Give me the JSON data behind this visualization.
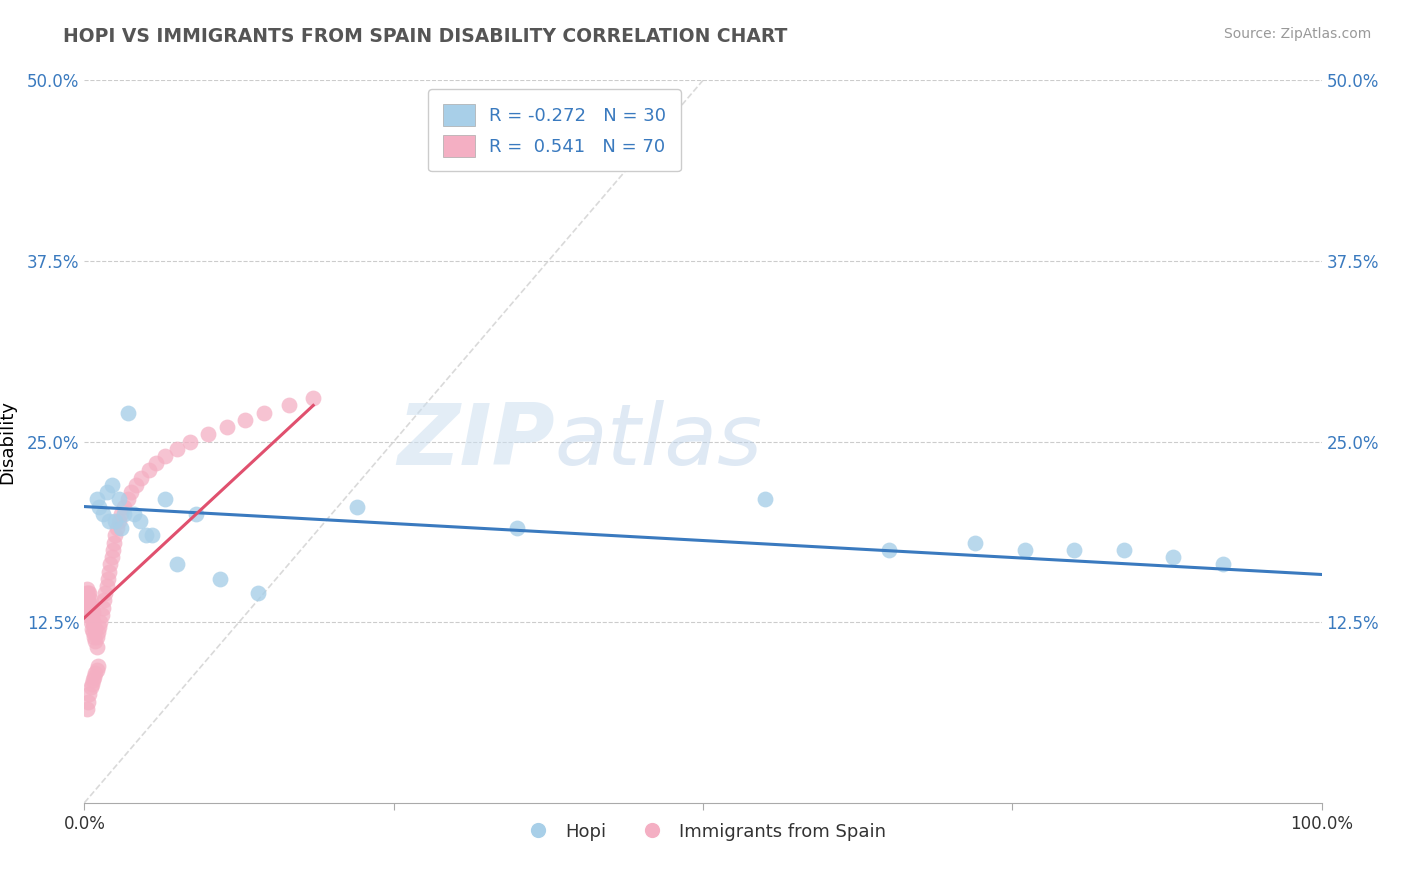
{
  "title": "HOPI VS IMMIGRANTS FROM SPAIN DISABILITY CORRELATION CHART",
  "source": "Source: ZipAtlas.com",
  "ylabel": "Disability",
  "xlim": [
    0,
    1.0
  ],
  "ylim": [
    0,
    0.5
  ],
  "yticks": [
    0.0,
    0.125,
    0.25,
    0.375,
    0.5
  ],
  "ytick_labels": [
    "",
    "12.5%",
    "25.0%",
    "37.5%",
    "50.0%"
  ],
  "xticks": [
    0.0,
    0.25,
    0.5,
    0.75,
    1.0
  ],
  "xtick_labels": [
    "0.0%",
    "",
    "",
    "",
    "100.0%"
  ],
  "watermark_zip": "ZIP",
  "watermark_atlas": "atlas",
  "legend_r1": "R = -0.272",
  "legend_n1": "N = 30",
  "legend_r2": "R =  0.541",
  "legend_n2": "N = 70",
  "blue_color": "#a8cfe8",
  "pink_color": "#f4afc3",
  "blue_line_color": "#3a7abf",
  "pink_line_color": "#e0506e",
  "diagonal_color": "#d0d0d0",
  "hopi_x": [
    0.01,
    0.012,
    0.015,
    0.018,
    0.02,
    0.022,
    0.025,
    0.028,
    0.03,
    0.032,
    0.035,
    0.04,
    0.045,
    0.05,
    0.055,
    0.065,
    0.075,
    0.09,
    0.11,
    0.14,
    0.22,
    0.35,
    0.55,
    0.65,
    0.72,
    0.76,
    0.8,
    0.84,
    0.88,
    0.92
  ],
  "hopi_y": [
    0.21,
    0.205,
    0.2,
    0.215,
    0.195,
    0.22,
    0.195,
    0.21,
    0.19,
    0.2,
    0.27,
    0.2,
    0.195,
    0.185,
    0.185,
    0.21,
    0.165,
    0.2,
    0.155,
    0.145,
    0.205,
    0.19,
    0.21,
    0.175,
    0.18,
    0.175,
    0.175,
    0.175,
    0.17,
    0.165
  ],
  "spain_x": [
    0.001,
    0.001,
    0.002,
    0.002,
    0.002,
    0.003,
    0.003,
    0.003,
    0.004,
    0.004,
    0.004,
    0.005,
    0.005,
    0.005,
    0.006,
    0.006,
    0.006,
    0.007,
    0.007,
    0.007,
    0.008,
    0.008,
    0.009,
    0.009,
    0.01,
    0.01,
    0.011,
    0.012,
    0.013,
    0.014,
    0.015,
    0.016,
    0.017,
    0.018,
    0.019,
    0.02,
    0.021,
    0.022,
    0.023,
    0.024,
    0.025,
    0.026,
    0.028,
    0.03,
    0.032,
    0.035,
    0.038,
    0.042,
    0.046,
    0.052,
    0.058,
    0.065,
    0.075,
    0.085,
    0.1,
    0.115,
    0.13,
    0.145,
    0.165,
    0.185,
    0.002,
    0.003,
    0.004,
    0.005,
    0.006,
    0.007,
    0.008,
    0.009,
    0.01,
    0.011
  ],
  "spain_y": [
    0.14,
    0.145,
    0.138,
    0.142,
    0.148,
    0.135,
    0.14,
    0.145,
    0.13,
    0.138,
    0.145,
    0.125,
    0.132,
    0.14,
    0.12,
    0.128,
    0.135,
    0.118,
    0.125,
    0.132,
    0.115,
    0.122,
    0.112,
    0.12,
    0.108,
    0.115,
    0.118,
    0.122,
    0.125,
    0.13,
    0.135,
    0.14,
    0.145,
    0.15,
    0.155,
    0.16,
    0.165,
    0.17,
    0.175,
    0.18,
    0.185,
    0.19,
    0.195,
    0.2,
    0.205,
    0.21,
    0.215,
    0.22,
    0.225,
    0.23,
    0.235,
    0.24,
    0.245,
    0.25,
    0.255,
    0.26,
    0.265,
    0.27,
    0.275,
    0.28,
    0.065,
    0.07,
    0.075,
    0.08,
    0.082,
    0.085,
    0.087,
    0.09,
    0.092,
    0.095
  ],
  "hopi_line_x0": 0.0,
  "hopi_line_y0": 0.205,
  "hopi_line_x1": 1.0,
  "hopi_line_y1": 0.158,
  "spain_line_x0": 0.0,
  "spain_line_y0": 0.128,
  "spain_line_x1": 0.185,
  "spain_line_y1": 0.275
}
